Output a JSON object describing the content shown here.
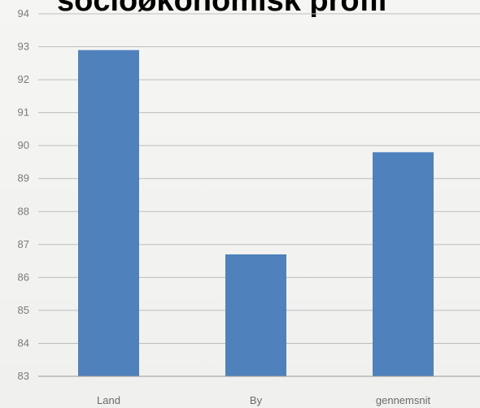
{
  "title": "socioøkonomisk profil",
  "colors": {
    "bar": "#4f81bd",
    "grid": "#bdbdbd",
    "axis": "#9a9a9a"
  },
  "chart_data": {
    "type": "bar",
    "title": "socioøkonomisk profil",
    "categories": [
      "Land",
      "By",
      "gennemsnit"
    ],
    "values": [
      92.9,
      86.7,
      89.8
    ],
    "ylim": [
      83,
      94
    ],
    "yticks": [
      83,
      84,
      85,
      86,
      87,
      88,
      89,
      90,
      91,
      92,
      93,
      94
    ],
    "xlabel": "",
    "ylabel": "",
    "grid": true,
    "legend": "none"
  }
}
